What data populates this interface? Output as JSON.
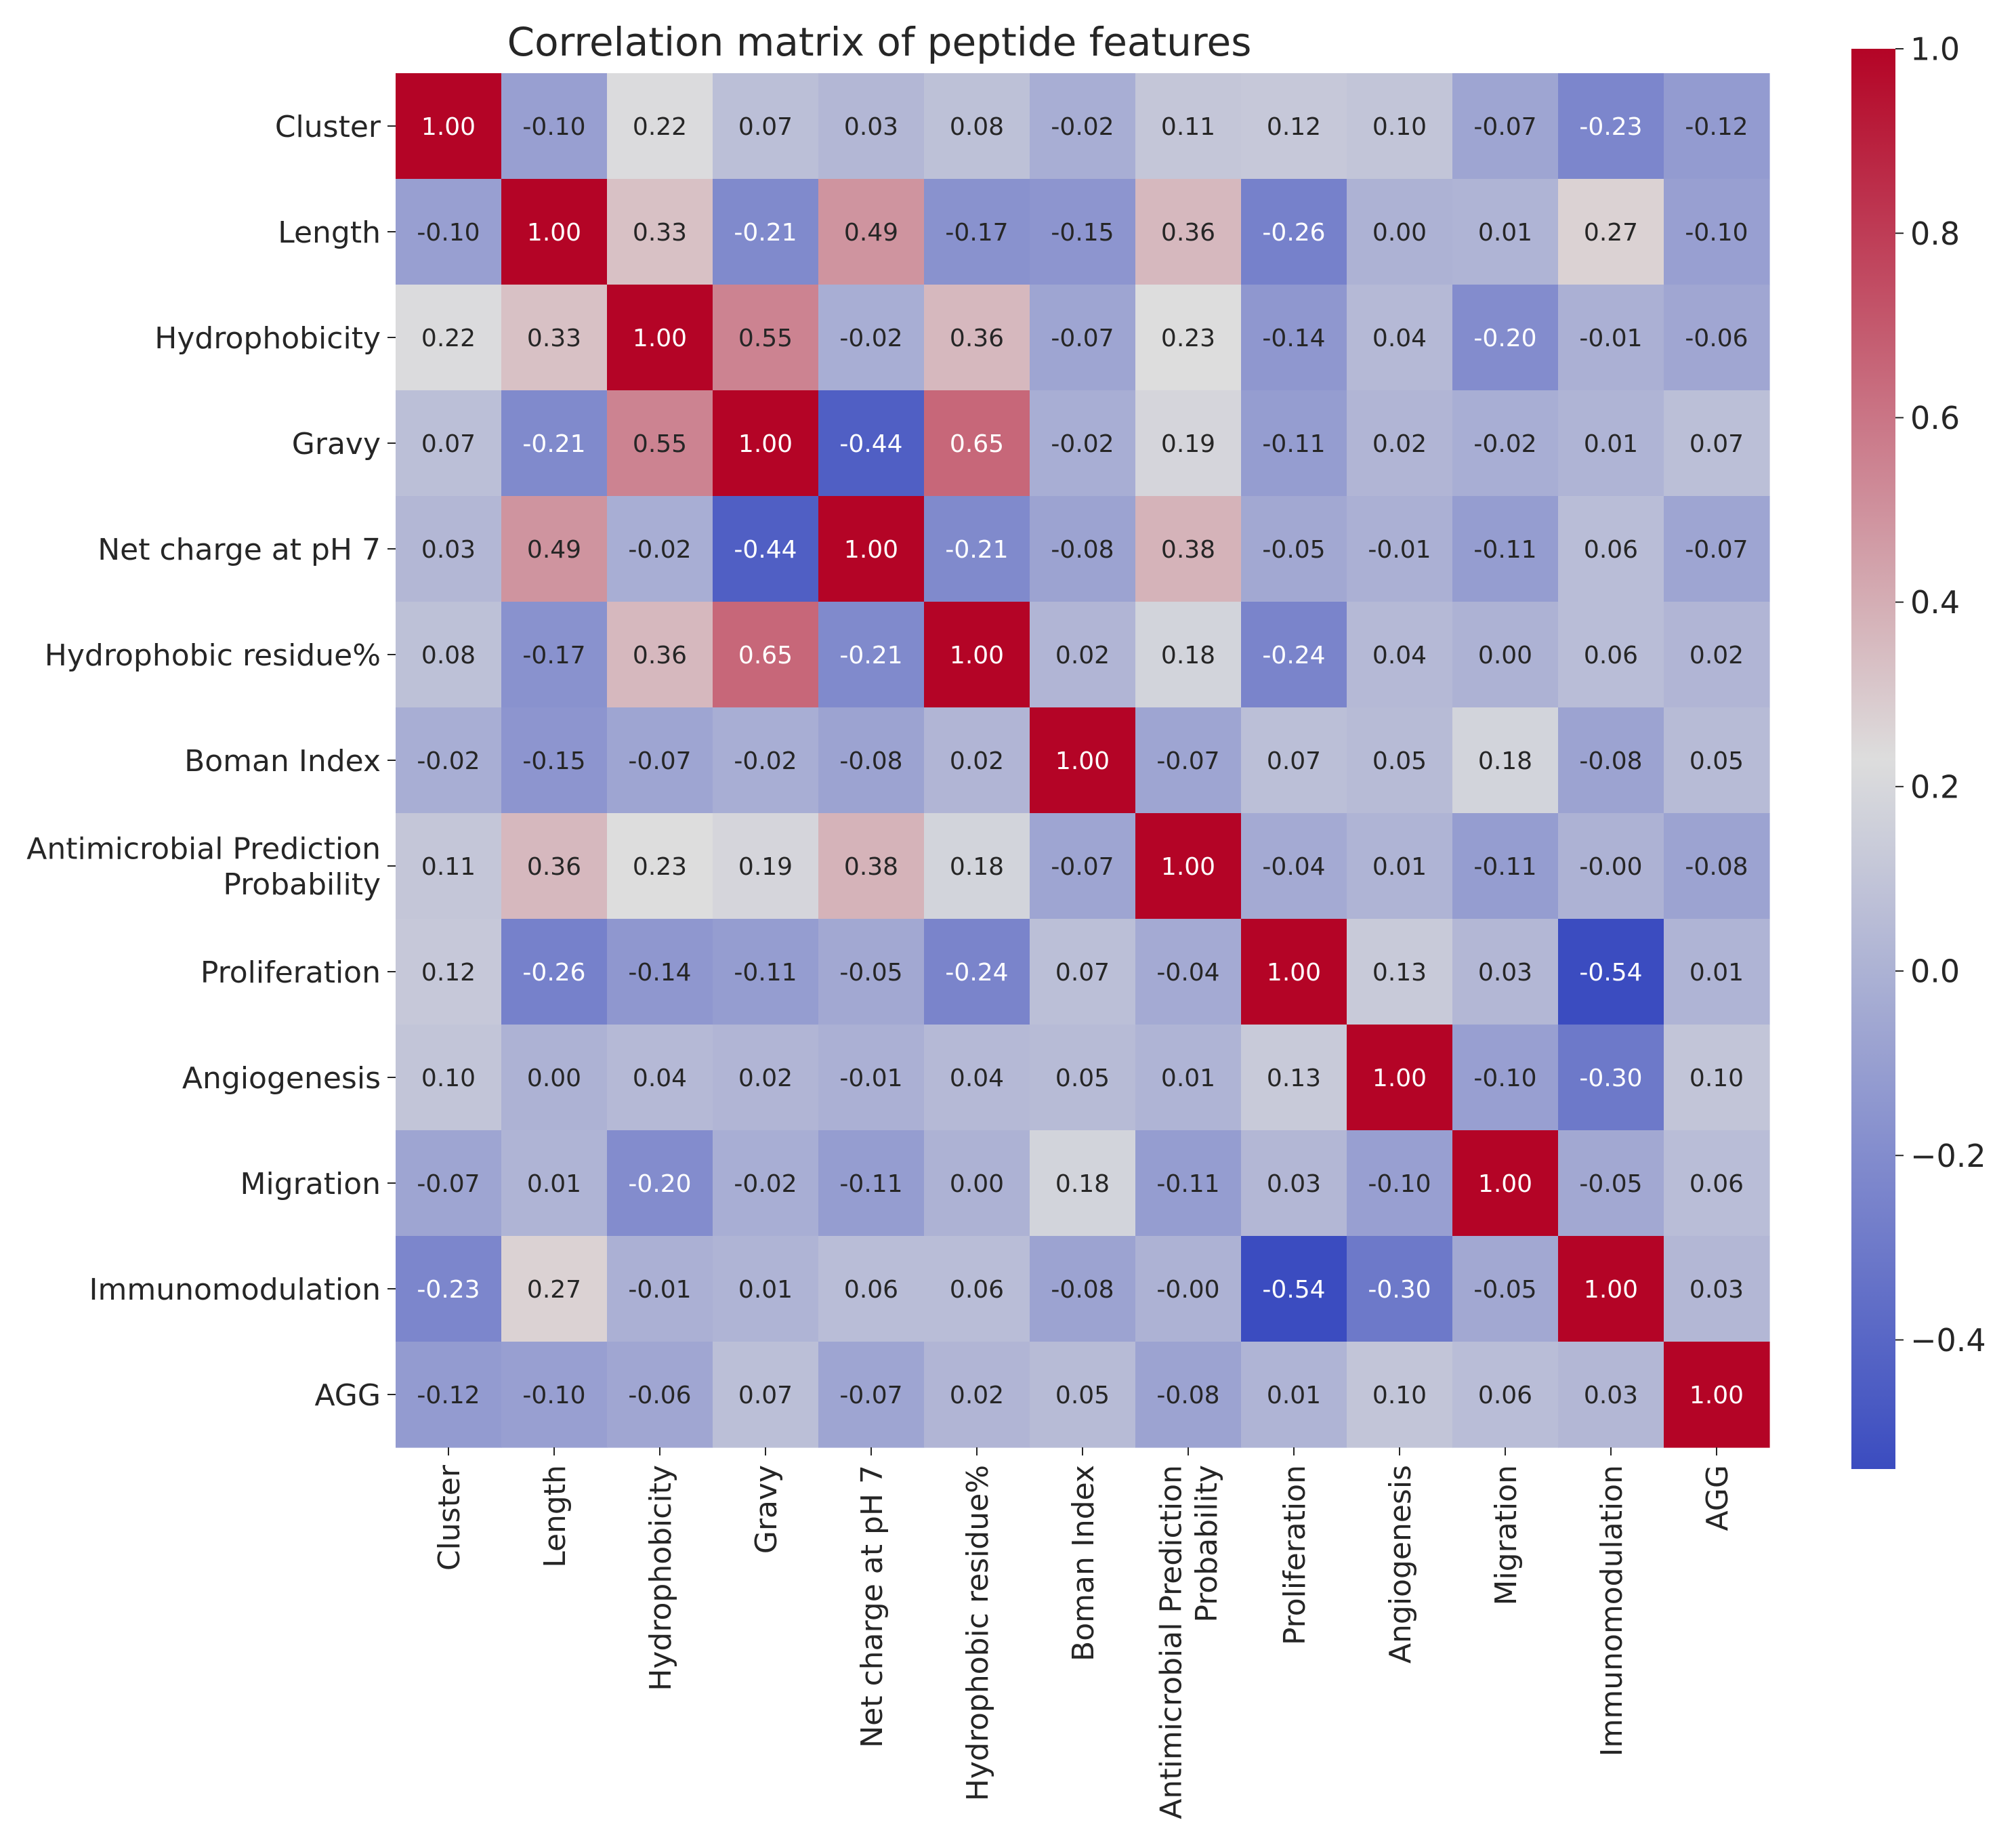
{
  "chart_data": {
    "type": "heatmap",
    "title": "Correlation matrix of peptide features",
    "labels": [
      "Cluster",
      "Length",
      "Hydrophobicity",
      "Gravy",
      "Net charge at pH 7",
      "Hydrophobic residue%",
      "Boman Index",
      "Antimicrobial Prediction Probability",
      "Proliferation",
      "Angiogenesis",
      "Migration",
      "Immunomodulation",
      "AGG"
    ],
    "values": [
      [
        1.0,
        -0.1,
        0.22,
        0.07,
        0.03,
        0.08,
        -0.02,
        0.11,
        0.12,
        0.1,
        -0.07,
        -0.23,
        -0.12
      ],
      [
        -0.1,
        1.0,
        0.33,
        -0.21,
        0.49,
        -0.17,
        -0.15,
        0.36,
        -0.26,
        0.0,
        0.01,
        0.27,
        -0.1
      ],
      [
        0.22,
        0.33,
        1.0,
        0.55,
        -0.02,
        0.36,
        -0.07,
        0.23,
        -0.14,
        0.04,
        -0.2,
        -0.01,
        -0.06
      ],
      [
        0.07,
        -0.21,
        0.55,
        1.0,
        -0.44,
        0.65,
        -0.02,
        0.19,
        -0.11,
        0.02,
        -0.02,
        0.01,
        0.07
      ],
      [
        0.03,
        0.49,
        -0.02,
        -0.44,
        1.0,
        -0.21,
        -0.08,
        0.38,
        -0.05,
        -0.01,
        -0.11,
        0.06,
        -0.07
      ],
      [
        0.08,
        -0.17,
        0.36,
        0.65,
        -0.21,
        1.0,
        0.02,
        0.18,
        -0.24,
        0.04,
        0.0,
        0.06,
        0.02
      ],
      [
        -0.02,
        -0.15,
        -0.07,
        -0.02,
        -0.08,
        0.02,
        1.0,
        -0.07,
        0.07,
        0.05,
        0.18,
        -0.08,
        0.05
      ],
      [
        0.11,
        0.36,
        0.23,
        0.19,
        0.38,
        0.18,
        -0.07,
        1.0,
        -0.04,
        0.01,
        -0.11,
        -0.0,
        -0.08
      ],
      [
        0.12,
        -0.26,
        -0.14,
        -0.11,
        -0.05,
        -0.24,
        0.07,
        -0.04,
        1.0,
        0.13,
        0.03,
        -0.54,
        0.01
      ],
      [
        0.1,
        0.0,
        0.04,
        0.02,
        -0.01,
        0.04,
        0.05,
        0.01,
        0.13,
        1.0,
        -0.1,
        -0.3,
        0.1
      ],
      [
        -0.07,
        0.01,
        -0.2,
        -0.02,
        -0.11,
        0.0,
        0.18,
        -0.11,
        0.03,
        -0.1,
        1.0,
        -0.05,
        0.06
      ],
      [
        -0.23,
        0.27,
        -0.01,
        0.01,
        0.06,
        0.06,
        -0.08,
        -0.0,
        -0.54,
        -0.3,
        -0.05,
        1.0,
        0.03
      ],
      [
        -0.12,
        -0.1,
        -0.06,
        0.07,
        -0.07,
        0.02,
        0.05,
        -0.08,
        0.01,
        0.1,
        0.06,
        0.03,
        1.0
      ]
    ],
    "value_labels": [
      [
        "1.00",
        "-0.10",
        "0.22",
        "0.07",
        "0.03",
        "0.08",
        "-0.02",
        "0.11",
        "0.12",
        "0.10",
        "-0.07",
        "-0.23",
        "-0.12"
      ],
      [
        "-0.10",
        "1.00",
        "0.33",
        "-0.21",
        "0.49",
        "-0.17",
        "-0.15",
        "0.36",
        "-0.26",
        "0.00",
        "0.01",
        "0.27",
        "-0.10"
      ],
      [
        "0.22",
        "0.33",
        "1.00",
        "0.55",
        "-0.02",
        "0.36",
        "-0.07",
        "0.23",
        "-0.14",
        "0.04",
        "-0.20",
        "-0.01",
        "-0.06"
      ],
      [
        "0.07",
        "-0.21",
        "0.55",
        "1.00",
        "-0.44",
        "0.65",
        "-0.02",
        "0.19",
        "-0.11",
        "0.02",
        "-0.02",
        "0.01",
        "0.07"
      ],
      [
        "0.03",
        "0.49",
        "-0.02",
        "-0.44",
        "1.00",
        "-0.21",
        "-0.08",
        "0.38",
        "-0.05",
        "-0.01",
        "-0.11",
        "0.06",
        "-0.07"
      ],
      [
        "0.08",
        "-0.17",
        "0.36",
        "0.65",
        "-0.21",
        "1.00",
        "0.02",
        "0.18",
        "-0.24",
        "0.04",
        "0.00",
        "0.06",
        "0.02"
      ],
      [
        "-0.02",
        "-0.15",
        "-0.07",
        "-0.02",
        "-0.08",
        "0.02",
        "1.00",
        "-0.07",
        "0.07",
        "0.05",
        "0.18",
        "-0.08",
        "0.05"
      ],
      [
        "0.11",
        "0.36",
        "0.23",
        "0.19",
        "0.38",
        "0.18",
        "-0.07",
        "1.00",
        "-0.04",
        "0.01",
        "-0.11",
        "-0.00",
        "-0.08"
      ],
      [
        "0.12",
        "-0.26",
        "-0.14",
        "-0.11",
        "-0.05",
        "-0.24",
        "0.07",
        "-0.04",
        "1.00",
        "0.13",
        "0.03",
        "-0.54",
        "0.01"
      ],
      [
        "0.10",
        "0.00",
        "0.04",
        "0.02",
        "-0.01",
        "0.04",
        "0.05",
        "0.01",
        "0.13",
        "1.00",
        "-0.10",
        "-0.30",
        "0.10"
      ],
      [
        "-0.07",
        "0.01",
        "-0.20",
        "-0.02",
        "-0.11",
        "0.00",
        "0.18",
        "-0.11",
        "0.03",
        "-0.10",
        "1.00",
        "-0.05",
        "0.06"
      ],
      [
        "-0.23",
        "0.27",
        "-0.01",
        "0.01",
        "0.06",
        "0.06",
        "-0.08",
        "-0.00",
        "-0.54",
        "-0.30",
        "-0.05",
        "1.00",
        "0.03"
      ],
      [
        "-0.12",
        "-0.10",
        "-0.06",
        "0.07",
        "-0.07",
        "0.02",
        "0.05",
        "-0.08",
        "0.01",
        "0.10",
        "0.06",
        "0.03",
        "1.00"
      ]
    ],
    "colormap": "coolwarm",
    "colormap_stops": [
      "#3b4cc0",
      "#dddddd",
      "#b40426"
    ],
    "vmin": -0.54,
    "vmax": 1.0,
    "colorbar_ticks": [
      1.0,
      0.8,
      0.6,
      0.4,
      0.2,
      0.0,
      -0.2,
      -0.4
    ],
    "colorbar_tick_labels": [
      "1.0",
      "0.8",
      "0.6",
      "0.4",
      "0.2",
      "0.0",
      "−0.2",
      "−0.4"
    ],
    "xlabel": "",
    "ylabel": "",
    "legend": "colorbar right"
  }
}
